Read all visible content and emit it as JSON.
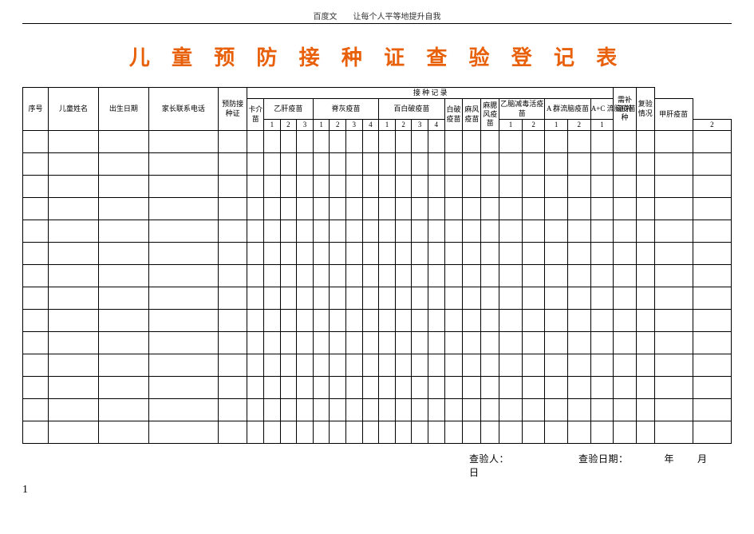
{
  "top_header": "百度文　　让每个人平等地提升自我",
  "title": "儿 童 预 防 接 种 证 查 验 登 记 表",
  "columns": {
    "seq": "序号",
    "child_name": "儿童姓名",
    "birth_date": "出生日期",
    "parent_phone": "家长联系电话",
    "cert": "预防接种证",
    "record_group": "接  种  记  录",
    "bcg": "卡介苗",
    "hepb": "乙肝疫苗",
    "polio": "脊灰疫苗",
    "dtp": "百白破疫苗",
    "dt": "白破疫苗",
    "measles": "麻风疫苗",
    "mmr": "麻腮风疫苗",
    "je": "乙脑减毒活疫苗",
    "mena": "A 群流脑疫苗",
    "menac": "A+C 流脑疫苗",
    "hepa": "甲肝疫苗",
    "supplement": "需补证/补种",
    "recheck": "复验情况",
    "d1": "1",
    "d2": "2",
    "d3": "3",
    "d4": "4"
  },
  "col_widths": {
    "seq": 28,
    "child_name": 55,
    "birth_date": 55,
    "parent_phone": 76,
    "cert": 32,
    "bcg": 18,
    "dose": 18,
    "single": 20,
    "je": 25,
    "supplement": 42,
    "recheck": 42
  },
  "body_row_count": 14,
  "footer": {
    "inspector_label": "查验人：",
    "date_label": "查验日期：",
    "year": "年",
    "month": "月",
    "day": "日"
  },
  "page_number": "1",
  "colors": {
    "title": "#e9600a",
    "border": "#000000",
    "text": "#000000",
    "background": "#ffffff"
  }
}
